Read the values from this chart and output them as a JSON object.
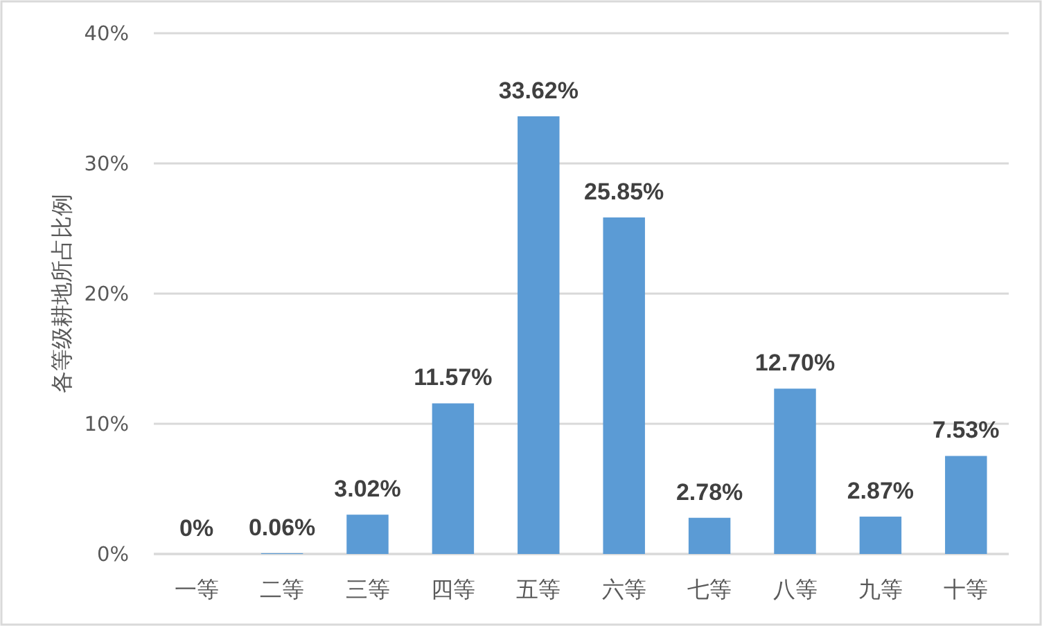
{
  "chart_data": {
    "type": "bar",
    "ylabel": "各等级耕地所占比例",
    "categories": [
      "一等",
      "二等",
      "三等",
      "四等",
      "五等",
      "六等",
      "七等",
      "八等",
      "九等",
      "十等"
    ],
    "values": [
      0,
      0.06,
      3.02,
      11.57,
      33.62,
      25.85,
      2.78,
      12.7,
      2.87,
      7.53
    ],
    "value_labels": [
      "0%",
      "0.06%",
      "3.02%",
      "11.57%",
      "33.62%",
      "25.85%",
      "2.78%",
      "12.70%",
      "2.87%",
      "7.53%"
    ],
    "color": "#5b9bd5",
    "ylim": [
      0,
      40
    ],
    "yticks": [
      {
        "value": 0,
        "label": "0%"
      },
      {
        "value": 10,
        "label": "10%"
      },
      {
        "value": 20,
        "label": "20%"
      },
      {
        "value": 30,
        "label": "30%"
      },
      {
        "value": 40,
        "label": "40%"
      }
    ],
    "grid": "y"
  }
}
